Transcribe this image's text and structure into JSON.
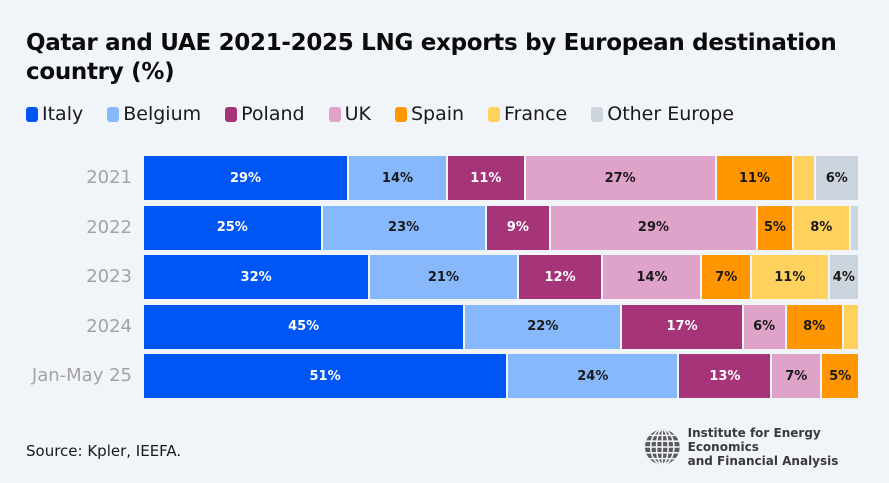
{
  "chart_data": {
    "type": "bar",
    "orientation": "horizontal",
    "stacked": true,
    "title": "Qatar and UAE 2021-2025 LNG exports by European destination country (%)",
    "xlabel": "",
    "ylabel": "",
    "xlim": [
      0,
      100
    ],
    "grid": false,
    "legend_position": "top-left",
    "categories": [
      "2021",
      "2022",
      "2023",
      "2024",
      "Jan-May 25"
    ],
    "series": [
      {
        "name": "Italy",
        "color": "#0055f5",
        "label_color": "#ffffff",
        "values": [
          29,
          25,
          32,
          45,
          51
        ],
        "labels": [
          "29%",
          "25%",
          "32%",
          "45%",
          "51%"
        ]
      },
      {
        "name": "Belgium",
        "color": "#86b8fb",
        "label_color": "#1a1a1a",
        "values": [
          14,
          23,
          21,
          22,
          24
        ],
        "labels": [
          "14%",
          "23%",
          "21%",
          "22%",
          "24%"
        ]
      },
      {
        "name": "Poland",
        "color": "#a53578",
        "label_color": "#ffffff",
        "values": [
          11,
          9,
          12,
          17,
          13
        ],
        "labels": [
          "11%",
          "9%",
          "12%",
          "17%",
          "13%"
        ]
      },
      {
        "name": "UK",
        "color": "#dfa2c8",
        "label_color": "#1a1a1a",
        "values": [
          27,
          29,
          14,
          6,
          7
        ],
        "labels": [
          "27%",
          "29%",
          "14%",
          "6%",
          "7%"
        ]
      },
      {
        "name": "Spain",
        "color": "#ff9602",
        "label_color": "#1a1a1a",
        "values": [
          11,
          5,
          7,
          8,
          5
        ],
        "labels": [
          "11%",
          "5%",
          "7%",
          "8%",
          "5%"
        ]
      },
      {
        "name": "France",
        "color": "#ffd25e",
        "label_color": "#1a1a1a",
        "values": [
          3,
          8,
          11,
          2,
          0
        ],
        "labels": [
          "",
          "8%",
          "11%",
          "",
          ""
        ]
      },
      {
        "name": "Other Europe",
        "color": "#ccd5de",
        "label_color": "#1a1a1a",
        "values": [
          6,
          1,
          4,
          0,
          0
        ],
        "labels": [
          "6%",
          "",
          "4%",
          "",
          ""
        ]
      }
    ]
  },
  "footer": {
    "source": "Source: Kpler, IEEFA.",
    "logo_line1": "Institute for Energy Economics",
    "logo_line2": "and Financial Analysis"
  }
}
